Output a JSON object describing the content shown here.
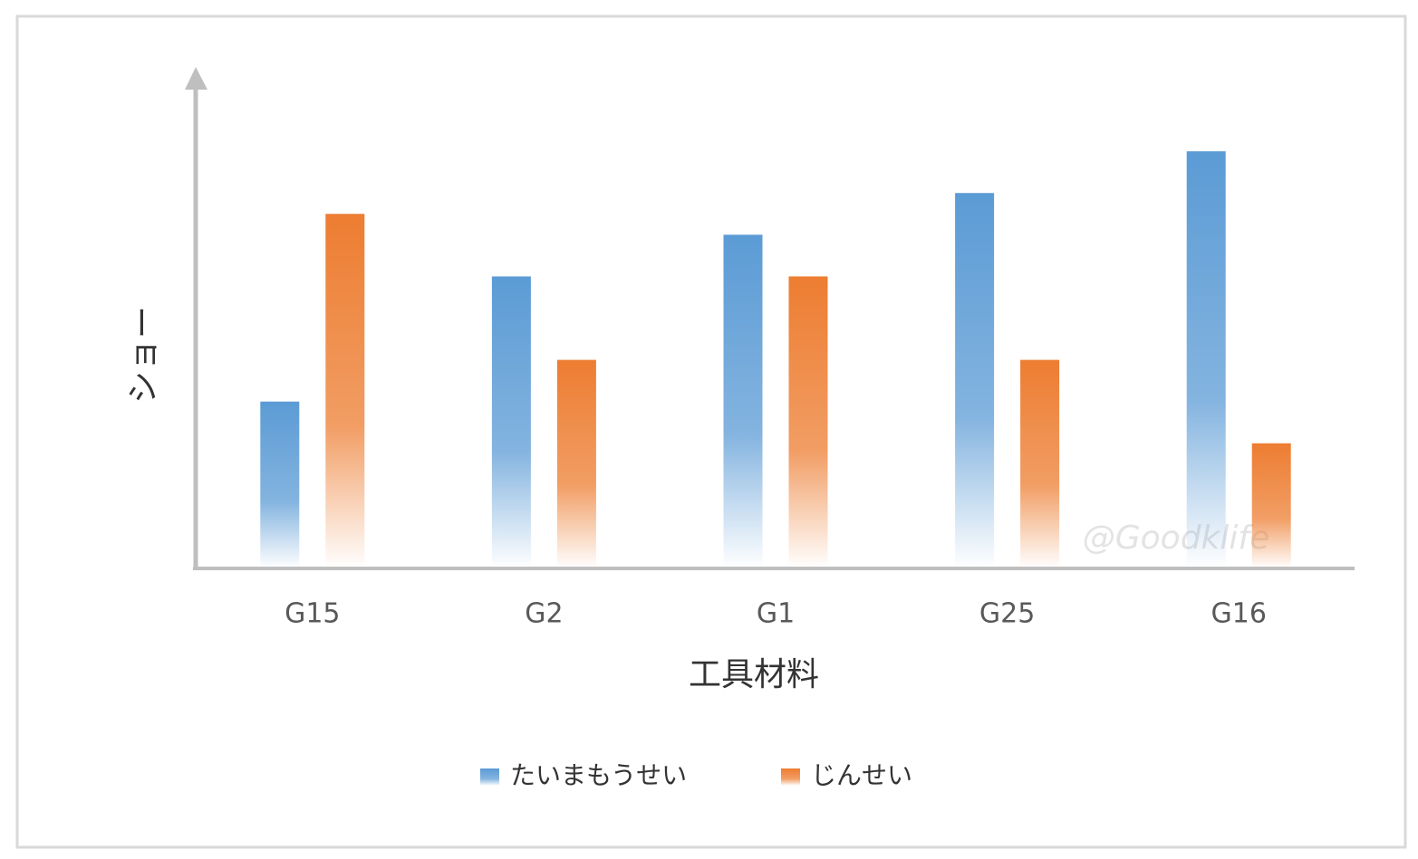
{
  "chart_data": {
    "type": "bar",
    "x_label": "工具材料",
    "y_label": "ショー",
    "categories": [
      "G15",
      "G2",
      "G1",
      "G25",
      "G16"
    ],
    "series": [
      {
        "name": "たいまもうせい",
        "color": "#5b9bd5",
        "values": [
          4,
          7,
          8,
          9,
          10
        ]
      },
      {
        "name": "じんせい",
        "color": "#ed7d31",
        "values": [
          8.5,
          5,
          7,
          5,
          3
        ]
      }
    ],
    "ylim": [
      0,
      12
    ],
    "legend": "bottom",
    "watermark": "@Goodklife"
  }
}
